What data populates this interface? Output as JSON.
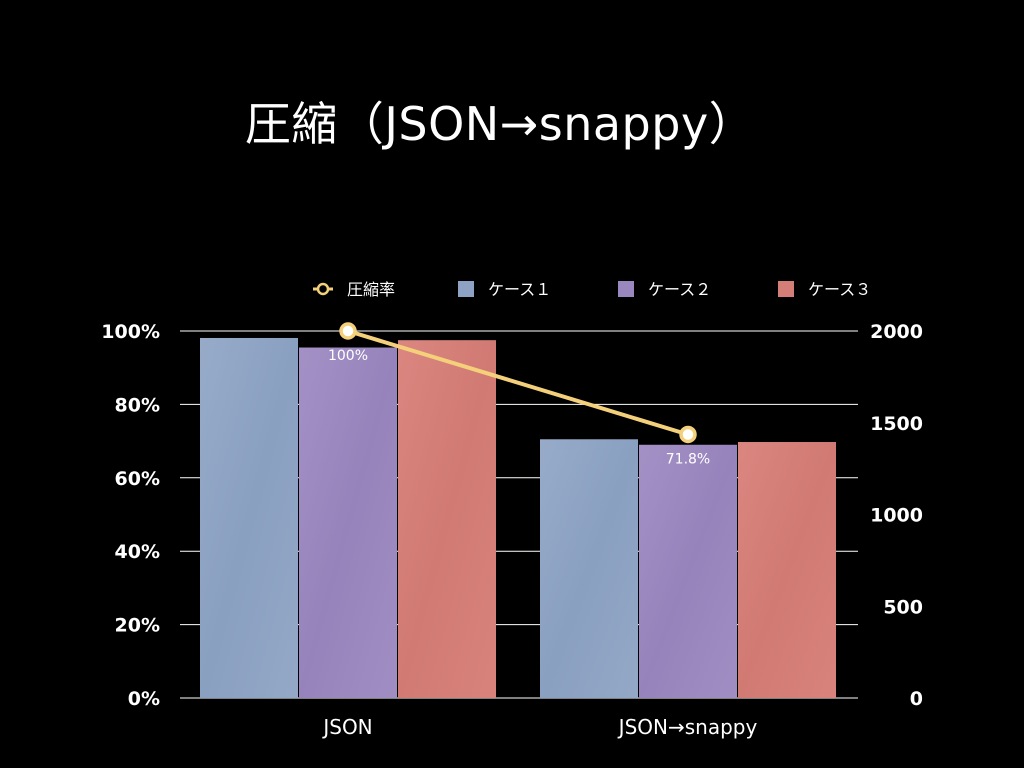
{
  "slide": {
    "title": "圧縮（JSON→snappy）"
  },
  "colors": {
    "background": "#000000",
    "case1": "#8ea3c3",
    "case2": "#9b87bf",
    "case3": "#d57e78",
    "ratio_line": "#f4d07a",
    "gridline": "#ffffff"
  },
  "chart_data": {
    "type": "bar",
    "title": "圧縮（JSON→snappy）",
    "categories": [
      "JSON",
      "JSON→snappy"
    ],
    "series": [
      {
        "name": "ケース１",
        "values": [
          1962,
          1410
        ],
        "axis": "right"
      },
      {
        "name": "ケース２",
        "values": [
          1910,
          1380
        ],
        "axis": "right"
      },
      {
        "name": "ケース３",
        "values": [
          1950,
          1395
        ],
        "axis": "right"
      }
    ],
    "line_series": {
      "name": "圧縮率",
      "type": "line",
      "axis": "left",
      "values": [
        100,
        71.8
      ],
      "labels": [
        "100%",
        "71.8%"
      ]
    },
    "left_axis": {
      "ylim": [
        0,
        100
      ],
      "ticks": [
        0,
        20,
        40,
        60,
        80,
        100
      ],
      "tick_labels": [
        "0%",
        "20%",
        "40%",
        "60%",
        "80%",
        "100%"
      ]
    },
    "right_axis": {
      "ylim": [
        0,
        2000
      ],
      "ticks": [
        0,
        500,
        1000,
        1500,
        2000
      ],
      "tick_labels": [
        "0",
        "500",
        "1000",
        "1500",
        "2000"
      ]
    },
    "legend": {
      "position": "top",
      "entries": [
        "圧縮率",
        "ケース１",
        "ケース２",
        "ケース３"
      ]
    },
    "grid": true,
    "xlabel": "",
    "ylabel": ""
  }
}
